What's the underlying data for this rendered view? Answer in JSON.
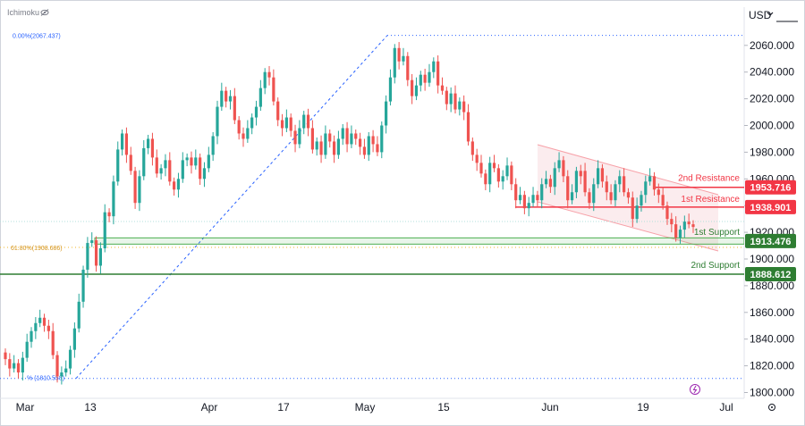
{
  "header": {
    "indicator_label": "Ichimoku",
    "currency": "USD"
  },
  "chart_data": {
    "type": "candlestick",
    "symbol_currency": "USD",
    "x_tick_labels": [
      "Mar",
      "13",
      "Apr",
      "17",
      "May",
      "15",
      "Jun",
      "19",
      "Jul"
    ],
    "y_tick_labels": [
      "1800.000",
      "1820.000",
      "1840.000",
      "1860.000",
      "1880.000",
      "1900.000",
      "1920.000",
      "1940.000",
      "1960.000",
      "1980.000",
      "2000.000",
      "2020.000",
      "2040.000",
      "2060.000"
    ],
    "ylim": [
      1800,
      2065
    ],
    "fib_levels": [
      {
        "label": "0.00%(2067.437)",
        "value": 2067.437
      },
      {
        "label": "61.80%(1908.686)",
        "value": 1908.686
      },
      {
        "label": "% (1810.558)",
        "value": 1810.558
      }
    ],
    "levels": [
      {
        "name": "2nd Resistance",
        "value": 1953.716,
        "value_label": "1953.716",
        "color": "#f23645"
      },
      {
        "name": "1st Resistance",
        "value": 1938.901,
        "value_label": "1938.901",
        "color": "#f23645"
      },
      {
        "name": "1st Support",
        "value": 1913.476,
        "value_label": "1913.476",
        "color": "#2e7d32"
      },
      {
        "name": "2nd Support",
        "value": 1888.612,
        "value_label": "1888.612",
        "color": "#2e7d32"
      }
    ],
    "candles": [
      [
        1830,
        1825
      ],
      [
        1825,
        1818
      ],
      [
        1818,
        1822
      ],
      [
        1822,
        1815
      ],
      [
        1815,
        1826
      ],
      [
        1826,
        1838
      ],
      [
        1838,
        1846
      ],
      [
        1846,
        1852
      ],
      [
        1852,
        1856
      ],
      [
        1856,
        1850
      ],
      [
        1850,
        1846
      ],
      [
        1846,
        1828
      ],
      [
        1828,
        1812
      ],
      [
        1812,
        1815
      ],
      [
        1815,
        1818
      ],
      [
        1818,
        1832
      ],
      [
        1832,
        1848
      ],
      [
        1848,
        1868
      ],
      [
        1868,
        1892
      ],
      [
        1892,
        1912
      ],
      [
        1912,
        1914
      ],
      [
        1914,
        1895
      ],
      [
        1895,
        1908
      ],
      [
        1908,
        1935
      ],
      [
        1935,
        1932
      ],
      [
        1932,
        1958
      ],
      [
        1958,
        1982
      ],
      [
        1982,
        1994
      ],
      [
        1994,
        1978
      ],
      [
        1978,
        1966
      ],
      [
        1966,
        1942
      ],
      [
        1942,
        1962
      ],
      [
        1962,
        1983
      ],
      [
        1983,
        1990
      ],
      [
        1990,
        1976
      ],
      [
        1976,
        1964
      ],
      [
        1964,
        1968
      ],
      [
        1968,
        1974
      ],
      [
        1974,
        1958
      ],
      [
        1958,
        1952
      ],
      [
        1952,
        1960
      ],
      [
        1960,
        1974
      ],
      [
        1974,
        1976
      ],
      [
        1976,
        1970
      ],
      [
        1970,
        1976
      ],
      [
        1976,
        1960
      ],
      [
        1960,
        1968
      ],
      [
        1968,
        1978
      ],
      [
        1978,
        1992
      ],
      [
        1992,
        2014
      ],
      [
        2014,
        2026
      ],
      [
        2026,
        2018
      ],
      [
        2018,
        2022
      ],
      [
        2022,
        2004
      ],
      [
        2004,
        1994
      ],
      [
        1994,
        1990
      ],
      [
        1990,
        1998
      ],
      [
        1998,
        2006
      ],
      [
        2006,
        2014
      ],
      [
        2014,
        2028
      ],
      [
        2028,
        2040
      ],
      [
        2040,
        2036
      ],
      [
        2036,
        2018
      ],
      [
        2018,
        2004
      ],
      [
        2004,
        1998
      ],
      [
        1998,
        2006
      ],
      [
        2006,
        1996
      ],
      [
        1996,
        1986
      ],
      [
        1986,
        1998
      ],
      [
        1998,
        2008
      ],
      [
        2008,
        1998
      ],
      [
        1998,
        1982
      ],
      [
        1982,
        1988
      ],
      [
        1988,
        1978
      ],
      [
        1978,
        1994
      ],
      [
        1994,
        1988
      ],
      [
        1988,
        1978
      ],
      [
        1978,
        1990
      ],
      [
        1990,
        1998
      ],
      [
        1998,
        1986
      ],
      [
        1986,
        1994
      ],
      [
        1994,
        1990
      ],
      [
        1990,
        1984
      ],
      [
        1984,
        1978
      ],
      [
        1978,
        1992
      ],
      [
        1992,
        1986
      ],
      [
        1986,
        1980
      ],
      [
        1980,
        2000
      ],
      [
        2000,
        2018
      ],
      [
        2018,
        2036
      ],
      [
        2036,
        2058
      ],
      [
        2058,
        2048
      ],
      [
        2048,
        2052
      ],
      [
        2052,
        2034
      ],
      [
        2034,
        2022
      ],
      [
        2022,
        2030
      ],
      [
        2030,
        2038
      ],
      [
        2038,
        2032
      ],
      [
        2032,
        2040
      ],
      [
        2040,
        2048
      ],
      [
        2048,
        2030
      ],
      [
        2030,
        2026
      ],
      [
        2026,
        2016
      ],
      [
        2016,
        2024
      ],
      [
        2024,
        2012
      ],
      [
        2012,
        2018
      ],
      [
        2018,
        2010
      ],
      [
        2010,
        1988
      ],
      [
        1988,
        1978
      ],
      [
        1978,
        1972
      ],
      [
        1972,
        1964
      ],
      [
        1964,
        1956
      ],
      [
        1956,
        1972
      ],
      [
        1972,
        1968
      ],
      [
        1968,
        1958
      ],
      [
        1958,
        1962
      ],
      [
        1962,
        1970
      ],
      [
        1970,
        1956
      ],
      [
        1956,
        1944
      ],
      [
        1944,
        1948
      ],
      [
        1948,
        1938
      ],
      [
        1938,
        1942
      ],
      [
        1942,
        1948
      ],
      [
        1948,
        1944
      ],
      [
        1944,
        1956
      ],
      [
        1956,
        1960
      ],
      [
        1960,
        1954
      ],
      [
        1954,
        1968
      ],
      [
        1968,
        1974
      ],
      [
        1974,
        1962
      ],
      [
        1962,
        1944
      ],
      [
        1944,
        1950
      ],
      [
        1950,
        1966
      ],
      [
        1966,
        1962
      ],
      [
        1966,
        1950
      ],
      [
        1950,
        1942
      ],
      [
        1942,
        1956
      ],
      [
        1956,
        1968
      ],
      [
        1968,
        1958
      ],
      [
        1958,
        1950
      ],
      [
        1950,
        1944
      ],
      [
        1944,
        1956
      ],
      [
        1956,
        1962
      ],
      [
        1962,
        1950
      ],
      [
        1950,
        1946
      ],
      [
        1946,
        1930
      ],
      [
        1930,
        1940
      ],
      [
        1940,
        1948
      ],
      [
        1948,
        1958
      ],
      [
        1958,
        1962
      ],
      [
        1962,
        1952
      ],
      [
        1952,
        1948
      ],
      [
        1948,
        1940
      ],
      [
        1940,
        1930
      ],
      [
        1930,
        1926
      ],
      [
        1926,
        1916
      ],
      [
        1916,
        1922
      ],
      [
        1922,
        1928
      ],
      [
        1928,
        1926
      ],
      [
        1926,
        1924
      ]
    ]
  }
}
